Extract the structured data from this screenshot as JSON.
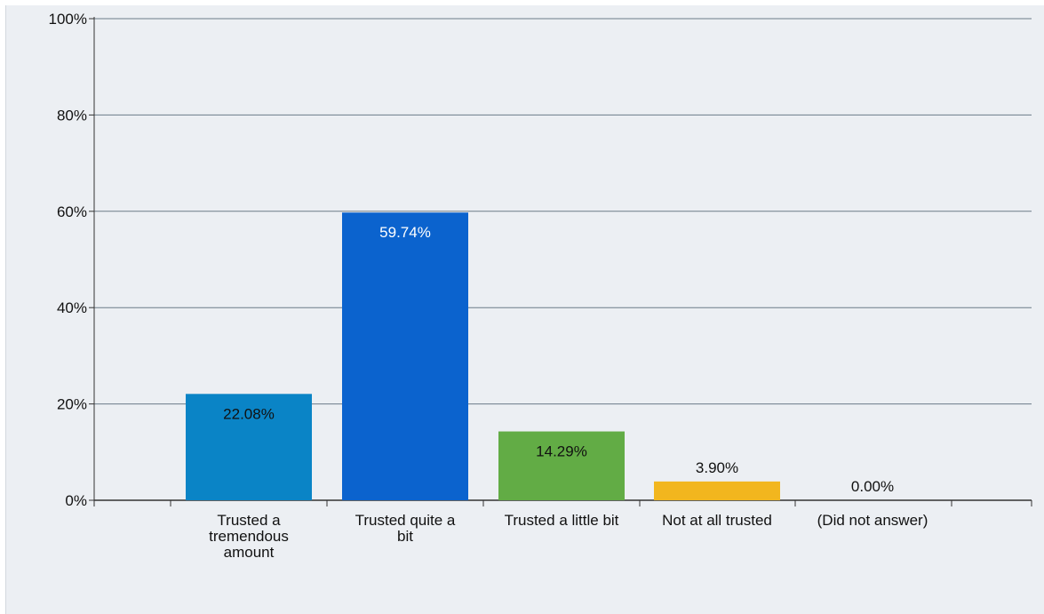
{
  "chart_data": {
    "type": "bar",
    "categories": [
      "Trusted a tremendous amount",
      "Trusted quite a bit",
      "Trusted a little bit",
      "Not at all trusted",
      "(Did not answer)"
    ],
    "category_label_lines": [
      [
        "Trusted a",
        "tremendous",
        "amount"
      ],
      [
        "Trusted quite a",
        "bit"
      ],
      [
        "Trusted a little bit"
      ],
      [
        "Not at all trusted"
      ],
      [
        "(Did not answer)"
      ]
    ],
    "values": [
      22.08,
      59.74,
      14.29,
      3.9,
      0.0
    ],
    "data_labels": [
      "22.08%",
      "59.74%",
      "14.29%",
      "3.90%",
      "0.00%"
    ],
    "colors": [
      "#0a84c6",
      "#0b63ce",
      "#62ac45",
      "#f2b61e",
      "#7f7f7f"
    ],
    "label_colors": [
      "#111111",
      "#ffffff",
      "#111111",
      "#111111",
      "#111111"
    ],
    "y_ticks": [
      "0%",
      "20%",
      "40%",
      "60%",
      "80%",
      "100%"
    ],
    "ylim": [
      0,
      100
    ],
    "grid": true,
    "colors_meta": {
      "gridline": "#6b7b88",
      "axis": "#333333",
      "background": "#eceff3"
    }
  }
}
